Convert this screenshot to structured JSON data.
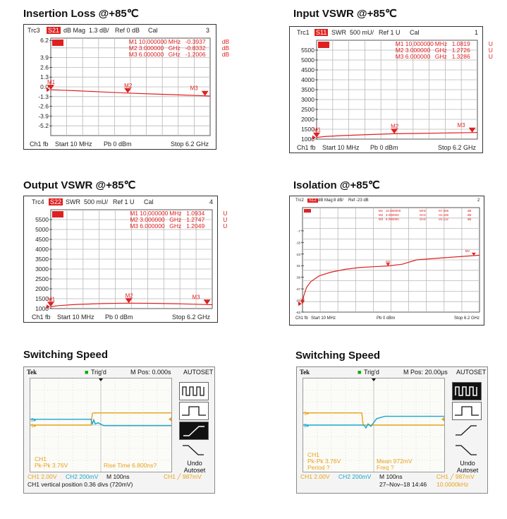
{
  "colors": {
    "trace": "#e02020",
    "grid": "#b8b8b8",
    "ch1": "#e8a317",
    "ch2": "#1aa7c9",
    "marker_text": "#e02020"
  },
  "panels": [
    {
      "title": "Insertion Loss @+85℃",
      "trc": "Trc3",
      "param": "S21",
      "fmt": "dB Mag",
      "scale": "1.3 dB/",
      "ref": "Ref 0 dB",
      "cal": "Cal",
      "num": "3",
      "start": "Start  10 MHz",
      "pb": "Pb   0 dBm",
      "stop": "Stop  6.2 GHz",
      "ch": "Ch1  fb",
      "markers": [
        {
          "name": "M1",
          "freq": "10.000000",
          "unit": "MHz",
          "val": "-0.3937",
          "vunit": "dB"
        },
        {
          "name": "M2",
          "freq": "3.000000",
          "unit": "GHz",
          "val": "-0.8332",
          "vunit": "dB"
        },
        {
          "name": "M3",
          "freq": "6.000000",
          "unit": "GHz",
          "val": "-1.2006",
          "vunit": "dB"
        }
      ]
    },
    {
      "title": "Input VSWR @+85℃",
      "trc": "Trc1",
      "param": "S11",
      "fmt": "SWR",
      "scale": "500 mU/",
      "ref": "Ref 1 U",
      "cal": "Cal",
      "num": "1",
      "start": "Start  10 MHz",
      "pb": "Pb   0 dBm",
      "stop": "Stop  6.2 GHz",
      "ch": "Ch1  fb",
      "markers": [
        {
          "name": "M1",
          "freq": "10.000000",
          "unit": "MHz",
          "val": "1.0819",
          "vunit": "U"
        },
        {
          "name": "M2",
          "freq": "3.000000",
          "unit": "GHz",
          "val": "1.2726",
          "vunit": "U"
        },
        {
          "name": "M3",
          "freq": "6.000000",
          "unit": "GHz",
          "val": "1.3286",
          "vunit": "U"
        }
      ]
    },
    {
      "title": "Output VSWR @+85℃",
      "trc": "Trc4",
      "param": "S22",
      "fmt": "SWR",
      "scale": "500 mU/",
      "ref": "Ref 1 U",
      "cal": "Cal",
      "num": "4",
      "start": "Start  10 MHz",
      "pb": "Pb   0 dBm",
      "stop": "Stop  6.2 GHz",
      "ch": "Ch1  fb",
      "markers": [
        {
          "name": "M1",
          "freq": "10.000000",
          "unit": "MHz",
          "val": "1.0934",
          "vunit": "U"
        },
        {
          "name": "M2",
          "freq": "3.000000",
          "unit": "GHz",
          "val": "1.2747",
          "vunit": "U"
        },
        {
          "name": "M3",
          "freq": "6.000000",
          "unit": "GHz",
          "val": "1.2049",
          "vunit": "U"
        }
      ]
    },
    {
      "title": "Isolation @+85℃",
      "trc": "Trc2",
      "param": "S12",
      "fmt": "dB Mag",
      "scale": "8 dB/",
      "ref": "Ref -23 dB",
      "cal": "",
      "num": "2",
      "start": "Start  10 MHz",
      "pb": "Pb   0 dBm",
      "stop": "Stop  6.2 GHz",
      "ch": "Ch1  fb",
      "markers": [
        {
          "name": "M1",
          "freq": "10.000000",
          "unit": "MHz",
          "val": "-57.306",
          "vunit": "dB"
        },
        {
          "name": "M2",
          "freq": "3.000000",
          "unit": "GHz",
          "val": "-31.190",
          "vunit": "dB"
        },
        {
          "name": "M3",
          "freq": "6.000000",
          "unit": "GHz",
          "val": "-24.112",
          "vunit": "dB"
        }
      ]
    },
    {
      "title": "Switching Speed",
      "brand": "Tek",
      "trig": "Trig'd",
      "mpos": "M Pos: 0.000s",
      "autoset": "AUTOSET",
      "undo": "Undo",
      "autoset2": "Autoset",
      "meas_left": [
        "CH1",
        "Pk-Pk 3.76V"
      ],
      "meas_right": [
        "Rise Time 6.800ns?"
      ],
      "ch1": "CH1  2.00V",
      "ch2": "CH2  200mV",
      "timebase": "M 100ns",
      "trig_level": "CH1 ╱ 987mV",
      "line2": "CH1 vertical position 0.36 divs (720mV)",
      "line2b": ""
    },
    {
      "title": "Switching Speed",
      "brand": "Tek",
      "trig": "Trig'd",
      "mpos": "M Pos: 20.00μs",
      "autoset": "AUTOSET",
      "undo": "Undo",
      "autoset2": "Autoset",
      "meas_left": [
        "CH1",
        "Pk-Pk 3.76V",
        "Period ?"
      ],
      "meas_right": [
        "Mean 972mV",
        "Freq ?"
      ],
      "ch1": "CH1  2.00V",
      "ch2": "CH2  200mV",
      "timebase": "M 100ns",
      "trig_level": "CH1 ╱ 987mV",
      "line2": "27–Nov–18 14:46",
      "line2b": "10.0000kHz"
    }
  ],
  "chart_data": [
    {
      "type": "line",
      "title": "Insertion Loss @+85℃",
      "ylabel": "",
      "xlabel": "",
      "ytick_labels": [
        "6.2",
        "3.9",
        "2.6",
        "1.3",
        "0.0",
        "-1.3",
        "-2.6",
        "-3.9",
        "-5.2"
      ],
      "ylim": [
        -6.5,
        6.5
      ],
      "xlim_ghz": [
        0.01,
        6.2
      ],
      "series": [
        {
          "x": [
            0.01,
            0.5,
            1,
            2,
            3,
            4,
            5,
            6,
            6.2
          ],
          "y": [
            -0.39,
            -0.45,
            -0.52,
            -0.68,
            -0.83,
            -0.95,
            -1.07,
            -1.2,
            -1.22
          ]
        }
      ],
      "markers_ghz": [
        0.01,
        3.0,
        6.0
      ]
    },
    {
      "type": "line",
      "title": "Input VSWR @+85℃",
      "ylabel": "",
      "xlabel": "",
      "ytick_labels": [
        "5500",
        "5000",
        "4500",
        "4000",
        "3500",
        "3000",
        "2500",
        "2000",
        "1500",
        "1000"
      ],
      "ylim": [
        1000,
        6000
      ],
      "xlim_ghz": [
        0.01,
        6.2
      ],
      "series": [
        {
          "x": [
            0.01,
            0.3,
            1,
            2,
            3,
            4,
            5,
            6,
            6.2
          ],
          "y": [
            1082,
            1130,
            1180,
            1230,
            1273,
            1290,
            1310,
            1329,
            1335
          ]
        }
      ],
      "markers_ghz": [
        0.01,
        3.0,
        6.0
      ]
    },
    {
      "type": "line",
      "title": "Output VSWR @+85℃",
      "ylabel": "",
      "xlabel": "",
      "ytick_labels": [
        "5500",
        "5000",
        "4500",
        "4000",
        "3500",
        "3000",
        "2500",
        "2000",
        "1500",
        "1000"
      ],
      "ylim": [
        1000,
        6000
      ],
      "xlim_ghz": [
        0.01,
        6.2
      ],
      "series": [
        {
          "x": [
            0.01,
            0.3,
            1,
            2,
            3,
            4,
            5,
            6,
            6.2
          ],
          "y": [
            1093,
            1150,
            1210,
            1255,
            1275,
            1265,
            1240,
            1205,
            1195
          ]
        }
      ],
      "markers_ghz": [
        0.01,
        3.0,
        6.0
      ]
    },
    {
      "type": "line",
      "title": "Isolation @+85℃",
      "ylabel": "",
      "xlabel": "",
      "ytick_labels": [
        "-7",
        "-15",
        "-23",
        "-31",
        "-39",
        "-47",
        "-55",
        "-63"
      ],
      "ylim": [
        -63,
        9
      ],
      "xlim_ghz": [
        0.01,
        6.2
      ],
      "series": [
        {
          "x": [
            0.01,
            0.05,
            0.15,
            0.3,
            0.6,
            1,
            1.5,
            2,
            2.5,
            3,
            3.5,
            4,
            5,
            6,
            6.2
          ],
          "y": [
            -57.3,
            -52,
            -46,
            -42,
            -38,
            -35.5,
            -33.5,
            -32.3,
            -31.7,
            -31.2,
            -30,
            -27,
            -25.5,
            -24.1,
            -23.8
          ]
        }
      ],
      "markers_ghz": [
        0.01,
        3.0,
        6.0
      ]
    },
    {
      "type": "line",
      "title": "Switching Speed",
      "xlim_div": [
        0,
        10
      ],
      "ylim_div": [
        -4,
        4
      ],
      "series": [
        {
          "name": "CH1",
          "x": [
            0,
            4.3,
            4.4,
            4.5,
            10
          ],
          "y": [
            0.0,
            0.0,
            1.0,
            1.05,
            1.05
          ]
        },
        {
          "name": "CH2",
          "x": [
            0,
            4.3,
            4.4,
            4.5,
            4.6,
            4.8,
            5.2,
            6.0,
            10
          ],
          "y": [
            0.5,
            0.5,
            0.1,
            0.45,
            0.1,
            0.2,
            -0.05,
            -0.05,
            -0.05
          ]
        }
      ]
    },
    {
      "type": "line",
      "title": "Switching Speed",
      "xlim_div": [
        0,
        10
      ],
      "ylim_div": [
        -4,
        4
      ],
      "series": [
        {
          "name": "CH1",
          "x": [
            0,
            4.15,
            4.25,
            10
          ],
          "y": [
            1.05,
            1.05,
            0.0,
            0.0
          ]
        },
        {
          "name": "CH2",
          "x": [
            0,
            4.3,
            4.45,
            4.6,
            4.8,
            5.2,
            5.8,
            10
          ],
          "y": [
            0.0,
            0.0,
            -0.25,
            0.1,
            -0.1,
            0.55,
            0.75,
            0.75
          ]
        }
      ]
    }
  ]
}
